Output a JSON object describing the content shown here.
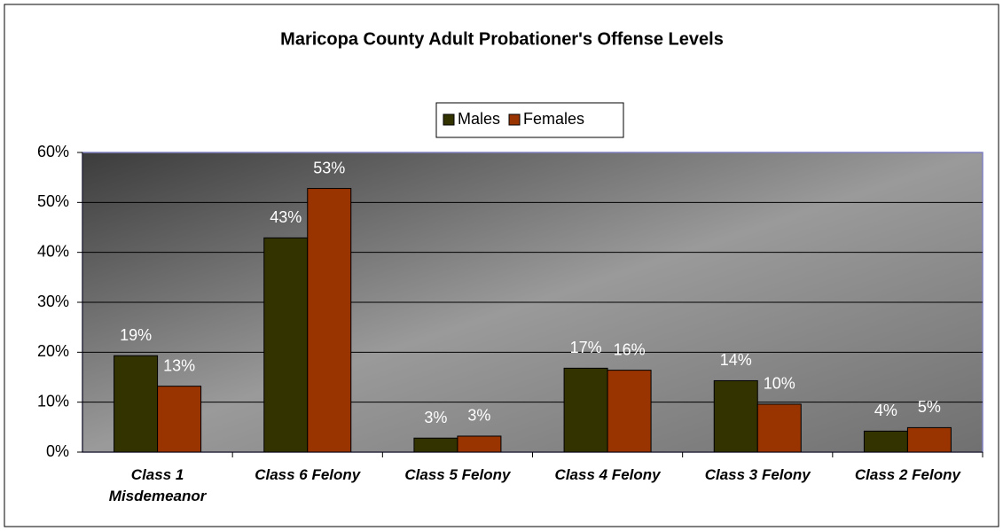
{
  "chart_data": {
    "type": "bar",
    "title": "Maricopa County Adult Probationer's Offense Levels",
    "categories": [
      "Class 1 Misdemeanor",
      "Class 6 Felony",
      "Class 5 Felony",
      "Class 4 Felony",
      "Class 3 Felony",
      "Class 2 Felony"
    ],
    "series": [
      {
        "name": "Males",
        "color": "#333300",
        "values": [
          19.3,
          42.9,
          2.8,
          16.8,
          14.3,
          4.2
        ],
        "value_labels": [
          "19%",
          "43%",
          "3%",
          "17%",
          "14%",
          "4%"
        ]
      },
      {
        "name": "Females",
        "color": "#993300",
        "values": [
          13.2,
          52.8,
          3.2,
          16.4,
          9.6,
          4.9
        ],
        "value_labels": [
          "13%",
          "53%",
          "3%",
          "16%",
          "10%",
          "5%"
        ]
      }
    ],
    "ylim": [
      0,
      60
    ],
    "yticks": [
      {
        "value": 0,
        "label": "0%"
      },
      {
        "value": 10,
        "label": "10%"
      },
      {
        "value": 20,
        "label": "20%"
      },
      {
        "value": 30,
        "label": "30%"
      },
      {
        "value": 40,
        "label": "40%"
      },
      {
        "value": 50,
        "label": "50%"
      },
      {
        "value": 60,
        "label": "60%"
      }
    ],
    "grid": true,
    "legend": "top"
  }
}
